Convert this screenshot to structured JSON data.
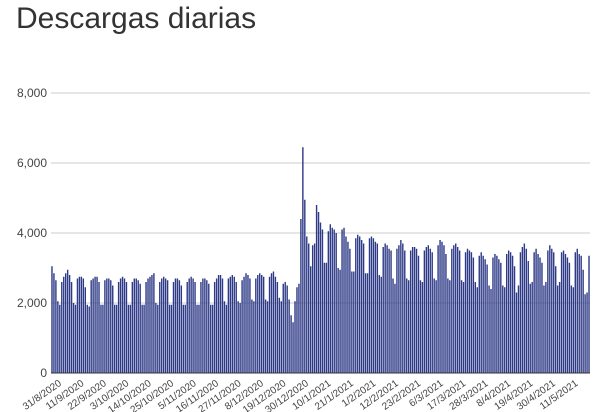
{
  "chart_data": {
    "type": "bar",
    "title": "Descargas diarias",
    "xlabel": "",
    "ylabel": "",
    "ylim": [
      0,
      8000
    ],
    "y_ticks": [
      0,
      2000,
      4000,
      6000,
      8000
    ],
    "y_tick_labels": [
      "0",
      "2,000",
      "4,000",
      "6,000",
      "8,000"
    ],
    "grid": true,
    "legend": "none",
    "colors": {
      "bar": "#2e3a87",
      "grid": "#cccccc",
      "axis": "#333333",
      "text": "#444444"
    },
    "x_start": "31/8/2020",
    "x_end": "20/5/2021",
    "x_tick_labels": [
      "31/8/2020",
      "11/9/2020",
      "22/9/2020",
      "3/10/2020",
      "14/10/2020",
      "25/10/2020",
      "5/11/2020",
      "16/11/2020",
      "27/11/2020",
      "8/12/2020",
      "19/12/2020",
      "30/12/2020",
      "10/1/2021",
      "21/1/2021",
      "1/2/2021",
      "12/2/2021",
      "23/2/2021",
      "6/3/2021",
      "17/3/2021",
      "28/3/2021",
      "8/4/2021",
      "19/4/2021",
      "30/4/2021",
      "11/5/2021"
    ],
    "values": [
      3050,
      2850,
      2650,
      2050,
      1950,
      2600,
      2750,
      2850,
      2950,
      2800,
      2600,
      2000,
      1950,
      2700,
      2750,
      2750,
      2700,
      2450,
      1950,
      1900,
      2650,
      2700,
      2750,
      2750,
      2600,
      1950,
      1950,
      2650,
      2700,
      2700,
      2650,
      2500,
      1950,
      1950,
      2600,
      2700,
      2750,
      2700,
      2600,
      1950,
      1950,
      2600,
      2700,
      2700,
      2650,
      2550,
      1950,
      1950,
      2600,
      2700,
      2750,
      2800,
      2850,
      2000,
      1950,
      2600,
      2700,
      2750,
      2700,
      2650,
      1950,
      1950,
      2600,
      2700,
      2700,
      2650,
      2500,
      1950,
      1950,
      2600,
      2700,
      2750,
      2700,
      2600,
      1950,
      1950,
      2600,
      2700,
      2700,
      2650,
      2550,
      1950,
      1950,
      2600,
      2700,
      2800,
      2800,
      2700,
      2050,
      1950,
      2700,
      2750,
      2800,
      2750,
      2600,
      2050,
      2000,
      2650,
      2750,
      2850,
      2800,
      2700,
      2100,
      2050,
      2700,
      2800,
      2850,
      2800,
      2750,
      2100,
      2050,
      2750,
      2850,
      2900,
      2750,
      2600,
      2150,
      2050,
      2550,
      2600,
      2500,
      2100,
      1650,
      1450,
      2050,
      2450,
      2550,
      4400,
      6450,
      4950,
      3900,
      3700,
      3050,
      3650,
      3700,
      4800,
      4600,
      4300,
      4100,
      3150,
      3150,
      4050,
      4250,
      4150,
      4100,
      4000,
      3000,
      2950,
      4100,
      4150,
      3900,
      3750,
      3550,
      2900,
      2900,
      3850,
      3950,
      3900,
      3800,
      3700,
      2850,
      2850,
      3850,
      3900,
      3850,
      3750,
      3700,
      2800,
      2750,
      3600,
      3700,
      3650,
      3550,
      3500,
      2700,
      2550,
      3550,
      3650,
      3800,
      3700,
      3500,
      2700,
      2650,
      3500,
      3600,
      3600,
      3550,
      3350,
      2650,
      2600,
      3500,
      3600,
      3650,
      3550,
      3450,
      2700,
      2650,
      3650,
      3800,
      3750,
      3650,
      3400,
      2700,
      2650,
      3550,
      3650,
      3700,
      3600,
      3500,
      2650,
      2600,
      3450,
      3550,
      3500,
      3450,
      3300,
      2600,
      2450,
      3350,
      3450,
      3350,
      3250,
      3100,
      2500,
      2400,
      3300,
      3400,
      3350,
      3250,
      3150,
      2500,
      2450,
      3400,
      3500,
      3450,
      3350,
      3050,
      2300,
      2500,
      3450,
      3600,
      3700,
      3550,
      3200,
      2550,
      2600,
      3450,
      3550,
      3400,
      3300,
      3150,
      2500,
      2600,
      3500,
      3650,
      3550,
      3450,
      3050,
      2500,
      2600,
      3450,
      3500,
      3400,
      3300,
      3150,
      2500,
      2450,
      3450,
      3550,
      3400,
      3350,
      2950,
      2250,
      2300,
      3350
    ]
  }
}
